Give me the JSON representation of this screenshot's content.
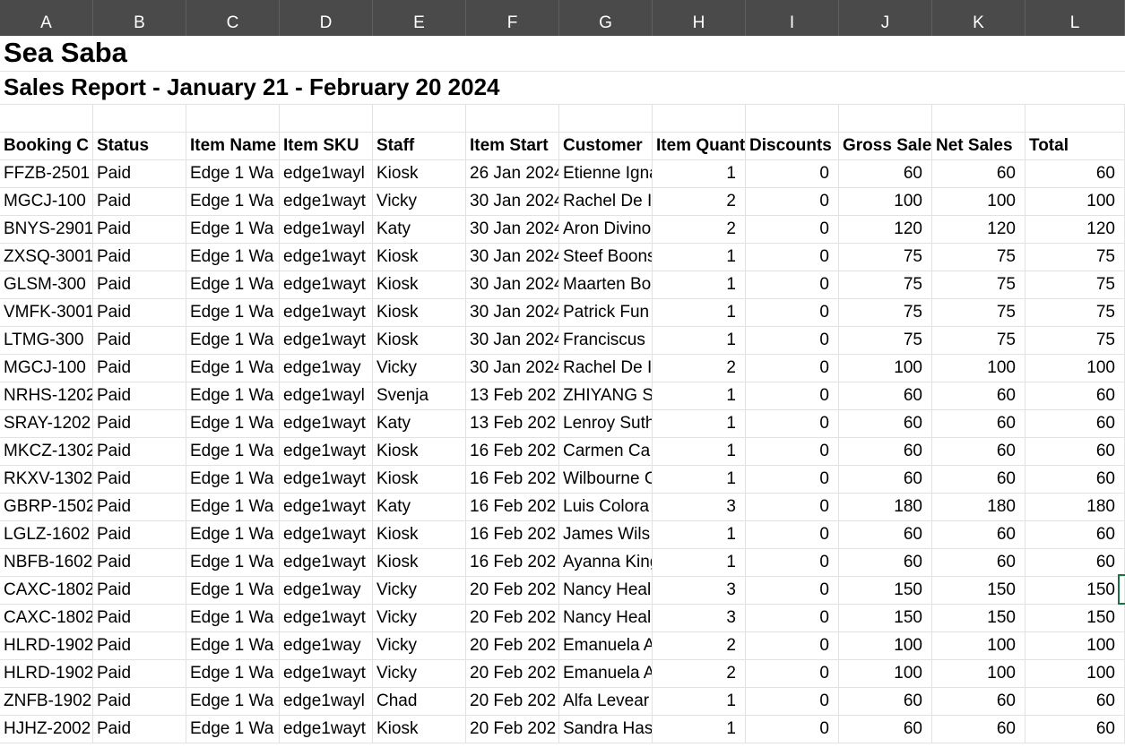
{
  "columns": [
    "A",
    "B",
    "C",
    "D",
    "E",
    "F",
    "G",
    "H",
    "I",
    "J",
    "K",
    "L"
  ],
  "sheet": {
    "title": "Sea Saba",
    "subtitle": "Sales Report - January 21 - February 20 2024"
  },
  "table": {
    "headers": [
      "Booking C",
      "Status",
      "Item Name",
      "Item SKU",
      "Staff",
      "Item Start",
      "Customer",
      "Item Quant",
      "Discounts",
      "Gross Sale",
      "Net Sales",
      "Total"
    ],
    "rows": [
      [
        "FFZB-2501",
        "Paid",
        "Edge 1 Wa",
        "edge1wayl",
        "Kiosk",
        "26 Jan 2024",
        "Etienne Igna",
        "1",
        "0",
        "60",
        "60",
        "60"
      ],
      [
        "MGCJ-100",
        "Paid",
        "Edge 1 Wa",
        "edge1wayt",
        "Vicky",
        "30 Jan 2024",
        "Rachel De I",
        "2",
        "0",
        "100",
        "100",
        "100"
      ],
      [
        "BNYS-2901",
        "Paid",
        "Edge 1 Wa",
        "edge1wayl",
        "Katy",
        "30 Jan 2024",
        "Aron Divino",
        "2",
        "0",
        "120",
        "120",
        "120"
      ],
      [
        "ZXSQ-3001",
        "Paid",
        "Edge 1 Wa",
        "edge1wayt",
        "Kiosk",
        "30 Jan 2024",
        "Steef Boons",
        "1",
        "0",
        "75",
        "75",
        "75"
      ],
      [
        "GLSM-300",
        "Paid",
        "Edge 1 Wa",
        "edge1wayt",
        "Kiosk",
        "30 Jan 2024",
        "Maarten Bo",
        "1",
        "0",
        "75",
        "75",
        "75"
      ],
      [
        "VMFK-3001",
        "Paid",
        "Edge 1 Wa",
        "edge1wayt",
        "Kiosk",
        "30 Jan 2024",
        "Patrick Fun",
        "1",
        "0",
        "75",
        "75",
        "75"
      ],
      [
        "LTMG-300",
        "Paid",
        "Edge 1 Wa",
        "edge1wayt",
        "Kiosk",
        "30 Jan 2024",
        "Franciscus",
        "1",
        "0",
        "75",
        "75",
        "75"
      ],
      [
        "MGCJ-100",
        "Paid",
        "Edge 1 Wa",
        "edge1way",
        "Vicky",
        "30 Jan 2024",
        "Rachel De I",
        "2",
        "0",
        "100",
        "100",
        "100"
      ],
      [
        "NRHS-1202",
        "Paid",
        "Edge 1 Wa",
        "edge1wayl",
        "Svenja",
        "13 Feb 202",
        "ZHIYANG S",
        "1",
        "0",
        "60",
        "60",
        "60"
      ],
      [
        "SRAY-1202",
        "Paid",
        "Edge 1 Wa",
        "edge1wayt",
        "Katy",
        "13 Feb 202",
        "Lenroy Suth",
        "1",
        "0",
        "60",
        "60",
        "60"
      ],
      [
        "MKCZ-1302",
        "Paid",
        "Edge 1 Wa",
        "edge1wayt",
        "Kiosk",
        "16 Feb 202",
        "Carmen Ca",
        "1",
        "0",
        "60",
        "60",
        "60"
      ],
      [
        "RKXV-1302",
        "Paid",
        "Edge 1 Wa",
        "edge1wayt",
        "Kiosk",
        "16 Feb 202",
        "Wilbourne C",
        "1",
        "0",
        "60",
        "60",
        "60"
      ],
      [
        "GBRP-1502",
        "Paid",
        "Edge 1 Wa",
        "edge1wayt",
        "Katy",
        "16 Feb 202",
        "Luis Colora",
        "3",
        "0",
        "180",
        "180",
        "180"
      ],
      [
        "LGLZ-1602",
        "Paid",
        "Edge 1 Wa",
        "edge1wayt",
        "Kiosk",
        "16 Feb 202",
        "James Wils",
        "1",
        "0",
        "60",
        "60",
        "60"
      ],
      [
        "NBFB-1602",
        "Paid",
        "Edge 1 Wa",
        "edge1wayt",
        "Kiosk",
        "16 Feb 202",
        "Ayanna King",
        "1",
        "0",
        "60",
        "60",
        "60"
      ],
      [
        "CAXC-1802",
        "Paid",
        "Edge 1 Wa",
        "edge1way",
        "Vicky",
        "20 Feb 202",
        "Nancy Heal",
        "3",
        "0",
        "150",
        "150",
        "150"
      ],
      [
        "CAXC-1802",
        "Paid",
        "Edge 1 Wa",
        "edge1wayt",
        "Vicky",
        "20 Feb 202",
        "Nancy Heal",
        "3",
        "0",
        "150",
        "150",
        "150"
      ],
      [
        "HLRD-1902",
        "Paid",
        "Edge 1 Wa",
        "edge1way",
        "Vicky",
        "20 Feb 202",
        "Emanuela A",
        "2",
        "0",
        "100",
        "100",
        "100"
      ],
      [
        "HLRD-1902",
        "Paid",
        "Edge 1 Wa",
        "edge1wayt",
        "Vicky",
        "20 Feb 202",
        "Emanuela A",
        "2",
        "0",
        "100",
        "100",
        "100"
      ],
      [
        "ZNFB-1902",
        "Paid",
        "Edge 1 Wa",
        "edge1wayl",
        "Chad",
        "20 Feb 202",
        "Alfa Levear",
        "1",
        "0",
        "60",
        "60",
        "60"
      ],
      [
        "HJHZ-2002",
        "Paid",
        "Edge 1 Wa",
        "edge1wayt",
        "Kiosk",
        "20 Feb 202",
        "Sandra Has",
        "1",
        "0",
        "60",
        "60",
        "60"
      ]
    ]
  }
}
